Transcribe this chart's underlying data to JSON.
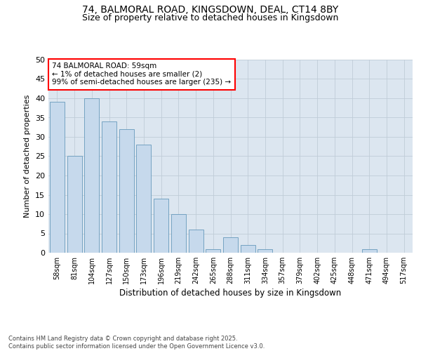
{
  "title_line1": "74, BALMORAL ROAD, KINGSDOWN, DEAL, CT14 8BY",
  "title_line2": "Size of property relative to detached houses in Kingsdown",
  "xlabel": "Distribution of detached houses by size in Kingsdown",
  "ylabel": "Number of detached properties",
  "categories": [
    "58sqm",
    "81sqm",
    "104sqm",
    "127sqm",
    "150sqm",
    "173sqm",
    "196sqm",
    "219sqm",
    "242sqm",
    "265sqm",
    "288sqm",
    "311sqm",
    "334sqm",
    "357sqm",
    "379sqm",
    "402sqm",
    "425sqm",
    "448sqm",
    "471sqm",
    "494sqm",
    "517sqm"
  ],
  "values": [
    39,
    25,
    40,
    34,
    32,
    28,
    14,
    10,
    6,
    1,
    4,
    2,
    1,
    0,
    0,
    0,
    0,
    0,
    1,
    0,
    0
  ],
  "bar_color": "#c6d9ec",
  "bar_edge_color": "#6699bb",
  "annotation_text": "74 BALMORAL ROAD: 59sqm\n← 1% of detached houses are smaller (2)\n99% of semi-detached houses are larger (235) →",
  "annotation_box_color": "white",
  "annotation_box_edge_color": "red",
  "ylim": [
    0,
    50
  ],
  "yticks": [
    0,
    5,
    10,
    15,
    20,
    25,
    30,
    35,
    40,
    45,
    50
  ],
  "grid_color": "#c0ccd8",
  "background_color": "#dce6f0",
  "footer_text": "Contains HM Land Registry data © Crown copyright and database right 2025.\nContains public sector information licensed under the Open Government Licence v3.0.",
  "title_fontsize": 10,
  "subtitle_fontsize": 9,
  "tick_fontsize": 7,
  "xlabel_fontsize": 8.5,
  "ylabel_fontsize": 8,
  "annotation_fontsize": 7.5,
  "footer_fontsize": 6
}
